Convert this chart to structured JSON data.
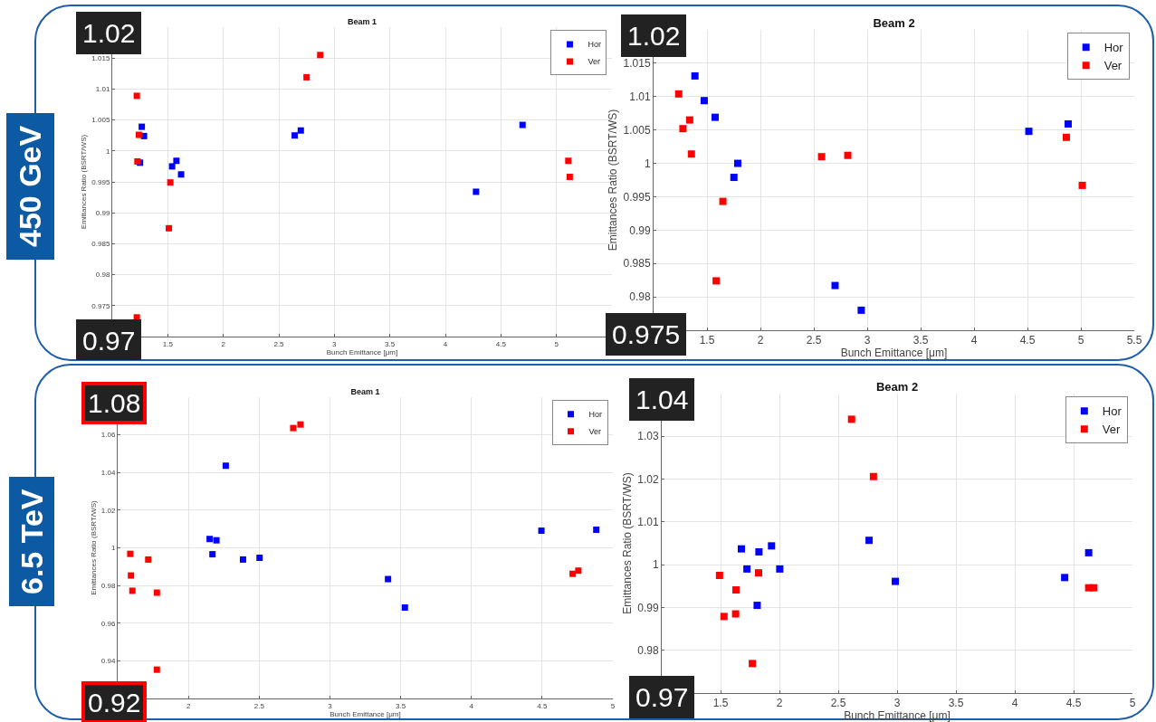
{
  "chart_data": [
    {
      "type": "scatter",
      "title": "Beam 1",
      "xlabel": "Bunch Emittance [μm]",
      "ylabel": "Emittances Ratio (BSRT/WS)",
      "annotations": [
        "450 GeV",
        "1.02",
        "0.97"
      ],
      "xlim": [
        1,
        5.5
      ],
      "xticks": [
        1.5,
        2,
        2.5,
        3,
        3.5,
        4,
        4.5,
        5
      ],
      "ylim": [
        0.97,
        1.02
      ],
      "yticks": [
        0.975,
        0.98,
        0.985,
        0.99,
        0.995,
        1,
        1.005,
        1.01,
        1.015
      ],
      "grid": true,
      "legend": "top right",
      "marker": "square",
      "series": [
        {
          "name": "Hor",
          "color": "#0000ff",
          "x": [
            1.266,
            1.286,
            1.25,
            1.539,
            1.578,
            1.62,
            2.643,
            2.698,
            4.276,
            4.695
          ],
          "values": [
            1.0039,
            1.0024,
            0.9981,
            0.9975,
            0.9984,
            0.9962,
            1.0025,
            1.0033,
            0.9934,
            1.0042
          ]
        },
        {
          "name": "Ver",
          "color": "#ff0000",
          "x": [
            1.221,
            1.24,
            1.227,
            1.523,
            1.51,
            2.75,
            2.873,
            5.107,
            5.12,
            1.221
          ],
          "values": [
            1.0089,
            1.0026,
            0.9983,
            0.9949,
            0.9875,
            1.0119,
            1.0155,
            0.9984,
            0.9958,
            0.9731
          ]
        }
      ]
    },
    {
      "type": "scatter",
      "title": "Beam 2",
      "xlabel": "Bunch Emittance [μm]",
      "ylabel": "Emittances Ratio (BSRT/WS)",
      "annotations": [
        "1.02",
        "0.975"
      ],
      "xlim": [
        1,
        5.5
      ],
      "xticks": [
        1.5,
        2,
        2.5,
        3,
        3.5,
        4,
        4.5,
        5,
        5.5
      ],
      "ylim": [
        0.975,
        1.02
      ],
      "yticks": [
        0.98,
        0.985,
        0.99,
        0.995,
        1,
        1.005,
        1.01,
        1.015
      ],
      "grid": true,
      "legend": "top right",
      "marker": "square",
      "series": [
        {
          "name": "Hor",
          "color": "#0000ff",
          "x": [
            1.387,
            1.474,
            1.576,
            1.788,
            1.752,
            2.699,
            2.944,
            4.513,
            4.881
          ],
          "values": [
            1.0131,
            1.0094,
            1.0069,
            1.0,
            0.9979,
            0.9817,
            0.978,
            1.0048,
            1.0059
          ]
        },
        {
          "name": "Ver",
          "color": "#ff0000",
          "x": [
            1.235,
            1.275,
            1.338,
            1.354,
            1.649,
            1.586,
            2.573,
            2.818,
            4.864,
            5.013
          ],
          "values": [
            1.0104,
            1.0052,
            1.0065,
            1.0014,
            0.9943,
            0.9824,
            1.001,
            1.0012,
            1.0039,
            0.9967
          ]
        }
      ]
    },
    {
      "type": "scatter",
      "title": "Beam 1",
      "xlabel": "Bunch Emittance [μm]",
      "ylabel": "Emittances Ratio (BSRT/WS)",
      "annotations": [
        "6.5 TeV",
        "1.08",
        "0.92"
      ],
      "xlim": [
        1.5,
        5
      ],
      "xticks": [
        2,
        2.5,
        3,
        3.5,
        4,
        4.5,
        5
      ],
      "ylim": [
        0.92,
        1.08
      ],
      "yticks": [
        0.94,
        0.96,
        0.98,
        1,
        1.02,
        1.04,
        1.06
      ],
      "grid": true,
      "legend": "top right",
      "marker": "square",
      "series": [
        {
          "name": "Hor",
          "color": "#0000ff",
          "x": [
            2.15,
            2.198,
            2.264,
            2.17,
            2.386,
            2.503,
            3.411,
            3.53,
            4.495,
            4.883
          ],
          "values": [
            1.0047,
            1.004,
            1.0436,
            0.9966,
            0.9938,
            0.9947,
            0.9834,
            0.9683,
            1.0091,
            1.0096
          ]
        },
        {
          "name": "Ver",
          "color": "#ff0000",
          "x": [
            1.589,
            1.594,
            1.604,
            1.716,
            1.777,
            1.777,
            2.741,
            2.792,
            4.716,
            4.756
          ],
          "values": [
            0.9968,
            0.9853,
            0.9772,
            0.9938,
            0.9762,
            0.9353,
            1.0636,
            1.0655,
            0.9862,
            0.9879
          ]
        }
      ]
    },
    {
      "type": "scatter",
      "title": "Beam 2",
      "xlabel": "Bunch Emittance [μm]",
      "ylabel": "Emittances Ratio (BSRT/WS)",
      "annotations": [
        "1.04",
        "0.97"
      ],
      "xlim": [
        1,
        5
      ],
      "xticks": [
        1.5,
        2,
        2.5,
        3,
        3.5,
        4,
        4.5,
        5
      ],
      "ylim": [
        0.97,
        1.04
      ],
      "yticks": [
        0.98,
        0.99,
        1,
        1.01,
        1.02,
        1.03
      ],
      "grid": true,
      "legend": "top right",
      "marker": "square",
      "series": [
        {
          "name": "Hor",
          "color": "#0000ff",
          "x": [
            1.677,
            1.724,
            1.826,
            1.933,
            2.003,
            1.811,
            2.762,
            2.985,
            4.424,
            4.628
          ],
          "values": [
            1.0037,
            0.999,
            1.003,
            1.0044,
            0.999,
            0.9905,
            1.0057,
            0.9961,
            0.997,
            1.0028
          ]
        },
        {
          "name": "Ver",
          "color": "#ff0000",
          "x": [
            1.491,
            1.631,
            1.529,
            1.628,
            1.823,
            1.77,
            2.613,
            2.799,
            4.628,
            4.672
          ],
          "values": [
            0.9975,
            0.9941,
            0.9879,
            0.9885,
            0.9981,
            0.9769,
            1.034,
            1.0206,
            0.9946,
            0.9946
          ]
        }
      ]
    }
  ]
}
